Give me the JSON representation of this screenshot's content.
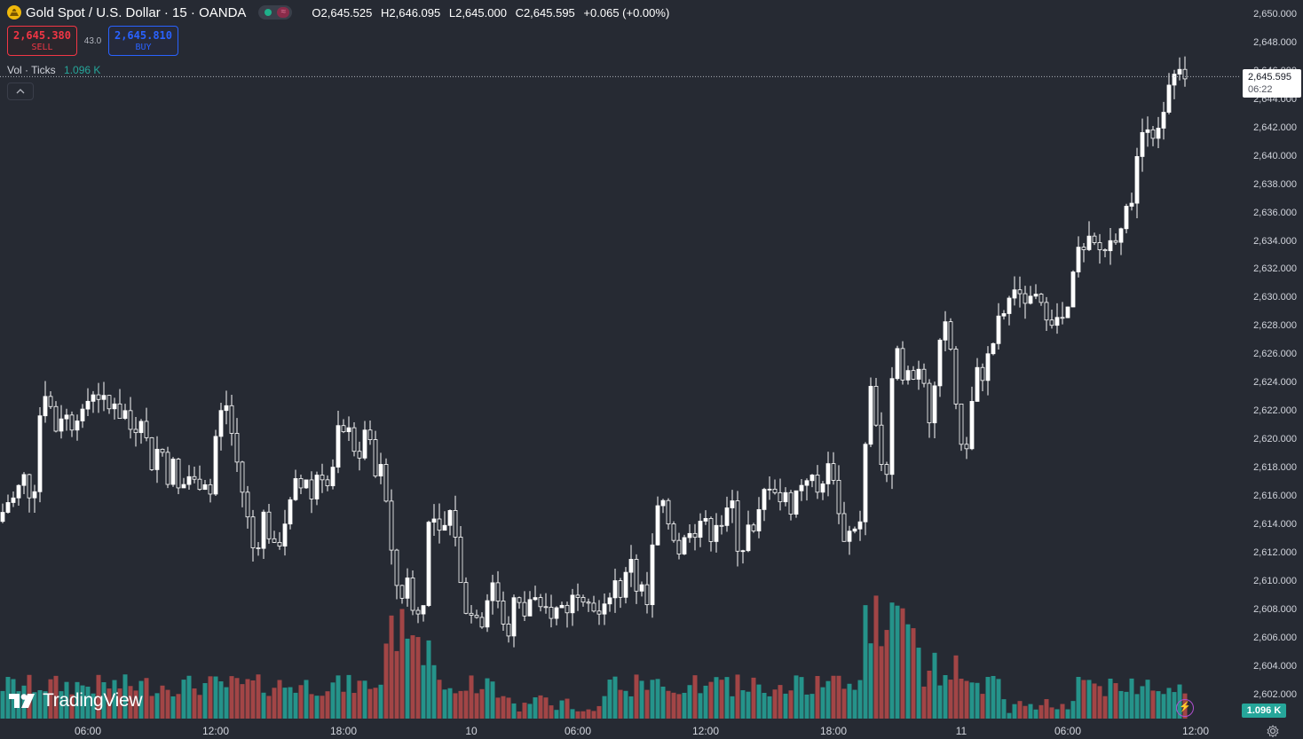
{
  "header": {
    "symbol": "Gold Spot / U.S. Dollar · 15 · OANDA",
    "ohlc": {
      "open": "O2,645.525",
      "high": "H2,646.095",
      "low": "L2,645.000",
      "close": "C2,645.595",
      "change": "+0.065 (+0.00%)"
    }
  },
  "trade": {
    "sell_price": "2,645.380",
    "sell_label": "SELL",
    "spread": "43.0",
    "buy_price": "2,645.810",
    "buy_label": "BUY"
  },
  "volume_legend": {
    "name": "Vol · Ticks",
    "value": "1.096 K"
  },
  "last_price": {
    "price": "2,645.595",
    "countdown": "06:22"
  },
  "volume_tag": "1.096 K",
  "logo": "TradingView",
  "colors": {
    "background": "#262a33",
    "up_candle": "#ffffff",
    "down_candle": "#ffffff",
    "volume_up": "#26a69a",
    "volume_down": "#b84a4a",
    "sell": "#f23645",
    "buy": "#2962ff"
  },
  "icons": [
    "gold-symbol-icon",
    "chevron-up-icon",
    "settings-icon",
    "lightning-icon",
    "tradingview-logo-icon"
  ],
  "chart_data": {
    "type": "candlestick",
    "title": "Gold Spot / U.S. Dollar · 15 · OANDA",
    "ylim": [
      2600,
      2651
    ],
    "y_ticks": [
      "2,650.000",
      "2,648.000",
      "2,646.000",
      "2,644.000",
      "2,642.000",
      "2,640.000",
      "2,638.000",
      "2,636.000",
      "2,634.000",
      "2,632.000",
      "2,630.000",
      "2,628.000",
      "2,626.000",
      "2,624.000",
      "2,622.000",
      "2,620.000",
      "2,618.000",
      "2,616.000",
      "2,614.000",
      "2,612.000",
      "2,610.000",
      "2,608.000",
      "2,606.000",
      "2,604.000",
      "2,602.000"
    ],
    "y_tick_values": [
      2650,
      2648,
      2646,
      2644,
      2642,
      2640,
      2638,
      2636,
      2634,
      2632,
      2630,
      2628,
      2626,
      2624,
      2622,
      2620,
      2618,
      2616,
      2614,
      2612,
      2610,
      2608,
      2606,
      2604,
      2602
    ],
    "x_ticks": [
      "06:00",
      "12:00",
      "18:00",
      "10",
      "06:00",
      "12:00",
      "18:00",
      "11",
      "06:00",
      "12:00"
    ],
    "close_path": [
      [
        0,
        2614.5
      ],
      [
        6,
        2615.2
      ],
      [
        12,
        2616
      ],
      [
        18,
        2615.5
      ],
      [
        24,
        2617.6
      ],
      [
        30,
        2617
      ],
      [
        36,
        2615.5
      ],
      [
        42,
        2618
      ],
      [
        46,
        2623
      ],
      [
        52,
        2623.5
      ],
      [
        58,
        2622
      ],
      [
        64,
        2620.5
      ],
      [
        70,
        2622
      ],
      [
        76,
        2621.5
      ],
      [
        82,
        2621
      ],
      [
        88,
        2622
      ],
      [
        94,
        2621.5
      ],
      [
        100,
        2623
      ],
      [
        106,
        2623.5
      ],
      [
        112,
        2623
      ],
      [
        118,
        2622.5
      ],
      [
        124,
        2622
      ],
      [
        130,
        2623
      ],
      [
        136,
        2621.5
      ],
      [
        142,
        2622
      ],
      [
        148,
        2620.5
      ],
      [
        154,
        2621
      ],
      [
        160,
        2622
      ],
      [
        166,
        2619.5
      ],
      [
        172,
        2618
      ],
      [
        178,
        2619.5
      ],
      [
        184,
        2619
      ],
      [
        190,
        2617
      ],
      [
        196,
        2618.5
      ],
      [
        202,
        2616
      ],
      [
        208,
        2617
      ],
      [
        214,
        2617.5
      ],
      [
        220,
        2616.8
      ],
      [
        226,
        2617
      ],
      [
        232,
        2617.2
      ],
      [
        238,
        2616
      ],
      [
        244,
        2621
      ],
      [
        250,
        2622
      ],
      [
        256,
        2622.5
      ],
      [
        262,
        2620
      ],
      [
        268,
        2618
      ],
      [
        274,
        2616
      ],
      [
        280,
        2614
      ],
      [
        286,
        2612
      ],
      [
        292,
        2613
      ],
      [
        298,
        2615
      ],
      [
        304,
        2613
      ],
      [
        310,
        2612
      ],
      [
        316,
        2613
      ],
      [
        322,
        2614.5
      ],
      [
        328,
        2615.5
      ],
      [
        334,
        2617
      ],
      [
        340,
        2616.5
      ],
      [
        346,
        2617.5
      ],
      [
        352,
        2615.5
      ],
      [
        358,
        2618
      ],
      [
        364,
        2617.5
      ],
      [
        370,
        2616.5
      ],
      [
        376,
        2618
      ],
      [
        382,
        2621
      ],
      [
        388,
        2620
      ],
      [
        394,
        2621.5
      ],
      [
        400,
        2619
      ],
      [
        406,
        2618
      ],
      [
        412,
        2621.5
      ],
      [
        418,
        2619
      ],
      [
        424,
        2617
      ],
      [
        430,
        2618
      ],
      [
        436,
        2615
      ],
      [
        442,
        2611
      ],
      [
        448,
        2609.5
      ],
      [
        454,
        2609
      ],
      [
        460,
        2610
      ],
      [
        466,
        2608
      ],
      [
        472,
        2607.5
      ],
      [
        478,
        2609
      ],
      [
        484,
        2615
      ],
      [
        490,
        2614
      ],
      [
        496,
        2613
      ],
      [
        502,
        2614
      ],
      [
        508,
        2615
      ],
      [
        514,
        2613
      ],
      [
        520,
        2609
      ],
      [
        526,
        2608
      ],
      [
        532,
        2607.5
      ],
      [
        538,
        2608
      ],
      [
        544,
        2607
      ],
      [
        550,
        2609.5
      ],
      [
        556,
        2610
      ],
      [
        562,
        2608.5
      ],
      [
        568,
        2607
      ],
      [
        574,
        2606.5
      ],
      [
        580,
        2609
      ],
      [
        586,
        2608
      ],
      [
        592,
        2607.5
      ],
      [
        598,
        2609
      ],
      [
        604,
        2608.5
      ],
      [
        610,
        2607.5
      ],
      [
        616,
        2608
      ],
      [
        622,
        2607.7
      ],
      [
        628,
        2608
      ],
      [
        634,
        2608.3
      ],
      [
        640,
        2608
      ],
      [
        646,
        2609
      ],
      [
        652,
        2609.5
      ],
      [
        658,
        2609
      ],
      [
        664,
        2609
      ],
      [
        670,
        2608
      ],
      [
        676,
        2607.5
      ],
      [
        682,
        2608
      ],
      [
        688,
        2609.5
      ],
      [
        694,
        2610
      ],
      [
        700,
        2609
      ],
      [
        706,
        2610.5
      ],
      [
        712,
        2612
      ],
      [
        718,
        2609
      ],
      [
        724,
        2609.5
      ],
      [
        730,
        2608
      ],
      [
        736,
        2613
      ],
      [
        742,
        2615.5
      ],
      [
        748,
        2615
      ],
      [
        754,
        2614
      ],
      [
        760,
        2613
      ],
      [
        766,
        2612
      ],
      [
        772,
        2613
      ],
      [
        778,
        2614
      ],
      [
        784,
        2613.5
      ],
      [
        790,
        2614.5
      ],
      [
        796,
        2613.8
      ],
      [
        802,
        2613.2
      ],
      [
        808,
        2614.5
      ],
      [
        814,
        2614
      ],
      [
        820,
        2614.8
      ],
      [
        826,
        2615.5
      ],
      [
        832,
        2612
      ],
      [
        838,
        2612.5
      ],
      [
        844,
        2614
      ],
      [
        850,
        2613
      ],
      [
        856,
        2615
      ],
      [
        862,
        2616.5
      ],
      [
        868,
        2617
      ],
      [
        874,
        2616.5
      ],
      [
        880,
        2615.5
      ],
      [
        886,
        2616
      ],
      [
        892,
        2615
      ],
      [
        898,
        2616.5
      ],
      [
        904,
        2617
      ],
      [
        910,
        2617.5
      ],
      [
        916,
        2617
      ],
      [
        922,
        2616
      ],
      [
        928,
        2617.5
      ],
      [
        934,
        2618
      ],
      [
        940,
        2617.5
      ],
      [
        946,
        2614
      ],
      [
        952,
        2613
      ],
      [
        958,
        2613.5
      ],
      [
        964,
        2614
      ],
      [
        970,
        2614
      ],
      [
        976,
        2620.5
      ],
      [
        982,
        2624.5
      ],
      [
        988,
        2620
      ],
      [
        994,
        2618
      ],
      [
        1000,
        2617.5
      ],
      [
        1006,
        2625
      ],
      [
        1012,
        2626
      ],
      [
        1018,
        2624.5
      ],
      [
        1024,
        2625.5
      ],
      [
        1030,
        2624
      ],
      [
        1036,
        2625.5
      ],
      [
        1042,
        2624
      ],
      [
        1048,
        2621
      ],
      [
        1054,
        2624
      ],
      [
        1060,
        2627
      ],
      [
        1066,
        2628
      ],
      [
        1072,
        2626
      ],
      [
        1078,
        2622
      ],
      [
        1084,
        2618.5
      ],
      [
        1090,
        2620
      ],
      [
        1096,
        2623
      ],
      [
        1102,
        2625
      ],
      [
        1108,
        2624.5
      ],
      [
        1114,
        2626
      ],
      [
        1120,
        2627
      ],
      [
        1126,
        2628.5
      ],
      [
        1132,
        2629
      ],
      [
        1138,
        2630
      ],
      [
        1144,
        2631
      ],
      [
        1150,
        2629.5
      ],
      [
        1156,
        2630
      ],
      [
        1162,
        2629.5
      ],
      [
        1168,
        2630
      ],
      [
        1174,
        2629
      ],
      [
        1180,
        2629
      ],
      [
        1186,
        2628.5
      ],
      [
        1192,
        2628.3
      ],
      [
        1198,
        2628.5
      ],
      [
        1204,
        2629
      ],
      [
        1210,
        2632
      ],
      [
        1216,
        2633.5
      ],
      [
        1222,
        2633
      ],
      [
        1228,
        2634
      ],
      [
        1234,
        2633.5
      ],
      [
        1240,
        2633.3
      ],
      [
        1246,
        2633.5
      ],
      [
        1252,
        2634
      ],
      [
        1258,
        2634.5
      ],
      [
        1264,
        2635.5
      ],
      [
        1270,
        2636
      ],
      [
        1276,
        2637.5
      ],
      [
        1282,
        2640
      ],
      [
        1288,
        2642
      ],
      [
        1294,
        2642.5
      ],
      [
        1300,
        2641.5
      ],
      [
        1306,
        2641.5
      ],
      [
        1312,
        2643
      ],
      [
        1318,
        2645
      ],
      [
        1324,
        2645.5
      ],
      [
        1330,
        2645.6
      ],
      [
        1336,
        2645.595
      ]
    ],
    "volume_max": 1
  }
}
